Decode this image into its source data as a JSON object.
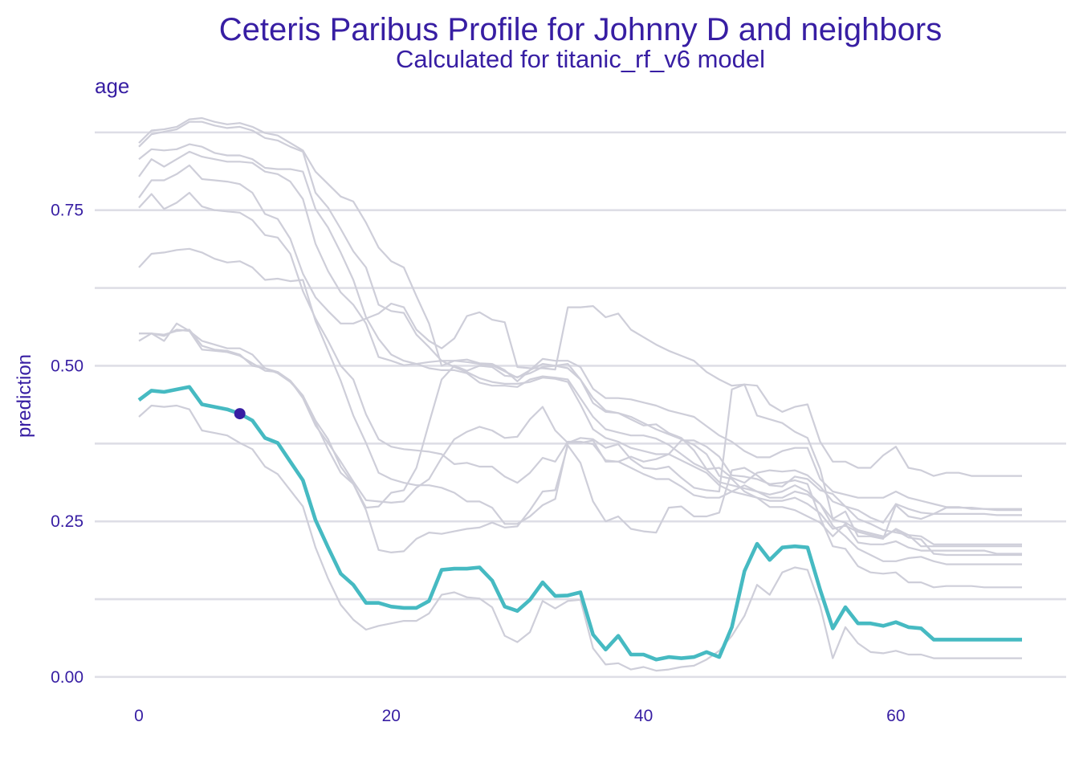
{
  "chart_data": {
    "type": "line",
    "title": "Ceteris Paribus Profile for Johnny D and neighbors",
    "subtitle": "Calculated for titanic_rf_v6 model",
    "facet_label": "age",
    "xlabel": "",
    "ylabel": "prediction",
    "xlim": [
      -3.5,
      73.5
    ],
    "ylim": [
      -0.035,
      0.92
    ],
    "x_ticks": [
      0,
      20,
      40,
      60
    ],
    "x_tick_labels": [
      "0",
      "20",
      "40",
      "60"
    ],
    "y_ticks": [
      0.0,
      0.25,
      0.5,
      0.75
    ],
    "y_tick_labels": [
      "0.00",
      "0.25",
      "0.50",
      "0.75"
    ],
    "grid": true,
    "legend": "none",
    "colors": {
      "main": "#46bac2",
      "neighbors": "#ceced9",
      "point": "#371ea3",
      "text": "#371ea3",
      "grid": "#dedee6"
    },
    "x": [
      0,
      1,
      2,
      3,
      4,
      5,
      6,
      7,
      8,
      9,
      10,
      11,
      12,
      13,
      14,
      15,
      16,
      17,
      18,
      19,
      20,
      21,
      22,
      23,
      24,
      25,
      26,
      27,
      28,
      29,
      30,
      31,
      32,
      33,
      34,
      35,
      36,
      37,
      38,
      39,
      40,
      41,
      42,
      43,
      44,
      45,
      46,
      47,
      48,
      49,
      50,
      51,
      52,
      53,
      54,
      55,
      56,
      57,
      58,
      59,
      60,
      61,
      62,
      63,
      64,
      65,
      66,
      67,
      68,
      69,
      70
    ],
    "main_series": {
      "values": [
        0.445,
        0.46,
        0.458,
        0.462,
        0.466,
        0.438,
        0.434,
        0.43,
        0.423,
        0.412,
        0.384,
        0.376,
        0.346,
        0.316,
        0.252,
        0.208,
        0.166,
        0.148,
        0.119,
        0.119,
        0.113,
        0.111,
        0.111,
        0.122,
        0.172,
        0.174,
        0.174,
        0.176,
        0.155,
        0.113,
        0.106,
        0.124,
        0.152,
        0.13,
        0.131,
        0.136,
        0.068,
        0.044,
        0.066,
        0.036,
        0.036,
        0.028,
        0.032,
        0.03,
        0.032,
        0.04,
        0.032,
        0.08,
        0.17,
        0.214,
        0.188,
        0.208,
        0.21,
        0.208,
        0.14,
        0.078,
        0.112,
        0.086,
        0.086,
        0.082,
        0.088,
        0.08,
        0.078,
        0.06,
        0.06,
        0.06,
        0.06,
        0.06,
        0.06,
        0.06,
        0.06
      ]
    },
    "observation": {
      "x": 8,
      "y": 0.423
    },
    "neighbors": [
      {
        "values": [
          0.858,
          0.878,
          0.88,
          0.884,
          0.896,
          0.898,
          0.892,
          0.888,
          0.89,
          0.884,
          0.874,
          0.87,
          0.858,
          0.846,
          0.812,
          0.792,
          0.772,
          0.764,
          0.73,
          0.69,
          0.668,
          0.658,
          0.612,
          0.568,
          0.5,
          0.508,
          0.51,
          0.504,
          0.503,
          0.493,
          0.475,
          0.493,
          0.503,
          0.5,
          0.503,
          0.478,
          0.448,
          0.428,
          0.424,
          0.418,
          0.408,
          0.398,
          0.39,
          0.382,
          0.373,
          0.358,
          0.323,
          0.318,
          0.298,
          0.288,
          0.273,
          0.273,
          0.268,
          0.258,
          0.248,
          0.226,
          0.246,
          0.216,
          0.213,
          0.213,
          0.218,
          0.208,
          0.203,
          0.203,
          0.203,
          0.203,
          0.203,
          0.203,
          0.198,
          0.198,
          0.198
        ]
      },
      {
        "values": [
          0.852,
          0.872,
          0.876,
          0.88,
          0.892,
          0.892,
          0.886,
          0.882,
          0.884,
          0.878,
          0.866,
          0.862,
          0.852,
          0.844,
          0.778,
          0.754,
          0.72,
          0.684,
          0.658,
          0.598,
          0.588,
          0.585,
          0.55,
          0.53,
          0.508,
          0.498,
          0.49,
          0.48,
          0.474,
          0.471,
          0.471,
          0.474,
          0.481,
          0.479,
          0.474,
          0.438,
          0.398,
          0.384,
          0.378,
          0.368,
          0.363,
          0.358,
          0.358,
          0.348,
          0.338,
          0.328,
          0.308,
          0.298,
          0.293,
          0.288,
          0.283,
          0.283,
          0.288,
          0.278,
          0.263,
          0.238,
          0.243,
          0.233,
          0.228,
          0.223,
          0.238,
          0.228,
          0.226,
          0.213,
          0.213,
          0.213,
          0.213,
          0.213,
          0.213,
          0.213,
          0.213
        ]
      },
      {
        "values": [
          0.832,
          0.848,
          0.846,
          0.848,
          0.856,
          0.852,
          0.842,
          0.838,
          0.838,
          0.832,
          0.818,
          0.816,
          0.816,
          0.812,
          0.752,
          0.722,
          0.682,
          0.638,
          0.578,
          0.543,
          0.518,
          0.508,
          0.503,
          0.496,
          0.493,
          0.493,
          0.488,
          0.473,
          0.468,
          0.468,
          0.466,
          0.478,
          0.483,
          0.481,
          0.478,
          0.448,
          0.418,
          0.398,
          0.393,
          0.388,
          0.388,
          0.383,
          0.373,
          0.358,
          0.343,
          0.333,
          0.313,
          0.308,
          0.303,
          0.298,
          0.293,
          0.298,
          0.308,
          0.298,
          0.278,
          0.253,
          0.248,
          0.236,
          0.231,
          0.226,
          0.236,
          0.224,
          0.221,
          0.198,
          0.196,
          0.196,
          0.196,
          0.196,
          0.196,
          0.196,
          0.196
        ]
      },
      {
        "values": [
          0.804,
          0.832,
          0.82,
          0.832,
          0.844,
          0.836,
          0.832,
          0.828,
          0.828,
          0.826,
          0.812,
          0.808,
          0.796,
          0.768,
          0.696,
          0.652,
          0.618,
          0.598,
          0.568,
          0.514,
          0.508,
          0.501,
          0.503,
          0.506,
          0.508,
          0.508,
          0.506,
          0.503,
          0.501,
          0.491,
          0.481,
          0.493,
          0.511,
          0.508,
          0.508,
          0.498,
          0.463,
          0.448,
          0.448,
          0.446,
          0.441,
          0.436,
          0.428,
          0.423,
          0.418,
          0.403,
          0.388,
          0.378,
          0.363,
          0.353,
          0.353,
          0.363,
          0.368,
          0.368,
          0.318,
          0.298,
          0.293,
          0.288,
          0.288,
          0.288,
          0.298,
          0.288,
          0.283,
          0.278,
          0.273,
          0.273,
          0.27,
          0.27,
          0.27,
          0.27,
          0.27
        ]
      },
      {
        "values": [
          0.77,
          0.798,
          0.798,
          0.808,
          0.822,
          0.8,
          0.798,
          0.796,
          0.792,
          0.778,
          0.744,
          0.736,
          0.704,
          0.648,
          0.61,
          0.588,
          0.568,
          0.568,
          0.576,
          0.584,
          0.6,
          0.594,
          0.558,
          0.54,
          0.528,
          0.544,
          0.58,
          0.586,
          0.574,
          0.57,
          0.498,
          0.496,
          0.496,
          0.494,
          0.594,
          0.594,
          0.596,
          0.578,
          0.584,
          0.558,
          0.546,
          0.534,
          0.524,
          0.516,
          0.508,
          0.49,
          0.478,
          0.468,
          0.47,
          0.468,
          0.438,
          0.426,
          0.434,
          0.438,
          0.378,
          0.346,
          0.346,
          0.336,
          0.336,
          0.356,
          0.37,
          0.336,
          0.332,
          0.323,
          0.328,
          0.328,
          0.323,
          0.323,
          0.323,
          0.323,
          0.323
        ]
      },
      {
        "values": [
          0.754,
          0.776,
          0.752,
          0.762,
          0.778,
          0.756,
          0.75,
          0.748,
          0.746,
          0.734,
          0.71,
          0.706,
          0.68,
          0.62,
          0.576,
          0.54,
          0.5,
          0.478,
          0.422,
          0.382,
          0.37,
          0.366,
          0.364,
          0.362,
          0.358,
          0.342,
          0.344,
          0.338,
          0.338,
          0.322,
          0.312,
          0.328,
          0.352,
          0.346,
          0.378,
          0.378,
          0.374,
          0.348,
          0.346,
          0.336,
          0.326,
          0.318,
          0.318,
          0.306,
          0.292,
          0.288,
          0.288,
          0.298,
          0.308,
          0.298,
          0.288,
          0.288,
          0.298,
          0.293,
          0.278,
          0.243,
          0.226,
          0.206,
          0.196,
          0.186,
          0.186,
          0.191,
          0.193,
          0.186,
          0.181,
          0.181,
          0.181,
          0.181,
          0.181,
          0.181,
          0.181
        ]
      },
      {
        "values": [
          0.658,
          0.68,
          0.682,
          0.686,
          0.688,
          0.682,
          0.672,
          0.666,
          0.668,
          0.658,
          0.638,
          0.64,
          0.636,
          0.638,
          0.572,
          0.524,
          0.476,
          0.42,
          0.376,
          0.328,
          0.318,
          0.312,
          0.308,
          0.308,
          0.304,
          0.296,
          0.282,
          0.282,
          0.272,
          0.246,
          0.246,
          0.258,
          0.276,
          0.286,
          0.376,
          0.376,
          0.38,
          0.346,
          0.346,
          0.354,
          0.346,
          0.35,
          0.358,
          0.38,
          0.38,
          0.37,
          0.354,
          0.324,
          0.322,
          0.318,
          0.31,
          0.312,
          0.316,
          0.31,
          0.256,
          0.21,
          0.206,
          0.178,
          0.168,
          0.166,
          0.168,
          0.152,
          0.152,
          0.144,
          0.146,
          0.146,
          0.146,
          0.144,
          0.144,
          0.144,
          0.144
        ]
      },
      {
        "values": [
          0.552,
          0.552,
          0.548,
          0.558,
          0.556,
          0.54,
          0.534,
          0.528,
          0.528,
          0.518,
          0.496,
          0.488,
          0.474,
          0.452,
          0.412,
          0.382,
          0.338,
          0.31,
          0.272,
          0.274,
          0.296,
          0.3,
          0.336,
          0.408,
          0.478,
          0.5,
          0.492,
          0.5,
          0.498,
          0.484,
          0.482,
          0.488,
          0.498,
          0.5,
          0.496,
          0.478,
          0.44,
          0.426,
          0.424,
          0.414,
          0.404,
          0.406,
          0.392,
          0.384,
          0.364,
          0.334,
          0.336,
          0.32,
          0.312,
          0.328,
          0.332,
          0.33,
          0.332,
          0.324,
          0.306,
          0.282,
          0.274,
          0.268,
          0.256,
          0.248,
          0.278,
          0.27,
          0.264,
          0.262,
          0.272,
          0.272,
          0.272,
          0.27,
          0.268,
          0.268,
          0.268
        ]
      },
      {
        "values": [
          0.54,
          0.552,
          0.54,
          0.568,
          0.556,
          0.526,
          0.524,
          0.522,
          0.516,
          0.504,
          0.492,
          0.49,
          0.476,
          0.452,
          0.408,
          0.366,
          0.328,
          0.31,
          0.268,
          0.204,
          0.2,
          0.202,
          0.222,
          0.232,
          0.23,
          0.234,
          0.238,
          0.24,
          0.248,
          0.24,
          0.242,
          0.268,
          0.298,
          0.3,
          0.372,
          0.344,
          0.282,
          0.25,
          0.258,
          0.238,
          0.234,
          0.232,
          0.272,
          0.274,
          0.258,
          0.258,
          0.264,
          0.332,
          0.336,
          0.324,
          0.308,
          0.306,
          0.322,
          0.318,
          0.3,
          0.294,
          0.274,
          0.254,
          0.246,
          0.236,
          0.232,
          0.228,
          0.21,
          0.21,
          0.21,
          0.21,
          0.21,
          0.21,
          0.21,
          0.21,
          0.21
        ]
      },
      {
        "values": [
          0.418,
          0.436,
          0.434,
          0.436,
          0.43,
          0.396,
          0.392,
          0.388,
          0.376,
          0.366,
          0.338,
          0.326,
          0.3,
          0.274,
          0.208,
          0.158,
          0.116,
          0.092,
          0.076,
          0.082,
          0.086,
          0.09,
          0.09,
          0.102,
          0.132,
          0.136,
          0.128,
          0.126,
          0.112,
          0.066,
          0.056,
          0.072,
          0.122,
          0.11,
          0.122,
          0.124,
          0.046,
          0.02,
          0.022,
          0.012,
          0.016,
          0.01,
          0.012,
          0.016,
          0.018,
          0.028,
          0.042,
          0.066,
          0.098,
          0.148,
          0.132,
          0.168,
          0.176,
          0.172,
          0.114,
          0.03,
          0.08,
          0.054,
          0.04,
          0.038,
          0.042,
          0.036,
          0.036,
          0.03,
          0.03,
          0.03,
          0.03,
          0.03,
          0.03,
          0.03,
          0.03
        ]
      },
      {
        "values": [
          0.552,
          0.552,
          0.55,
          0.556,
          0.558,
          0.532,
          0.526,
          0.524,
          0.518,
          0.5,
          0.496,
          0.49,
          0.476,
          0.448,
          0.404,
          0.376,
          0.346,
          0.314,
          0.284,
          0.282,
          0.28,
          0.282,
          0.304,
          0.318,
          0.352,
          0.382,
          0.394,
          0.402,
          0.396,
          0.384,
          0.386,
          0.414,
          0.434,
          0.396,
          0.376,
          0.384,
          0.382,
          0.368,
          0.374,
          0.35,
          0.336,
          0.334,
          0.338,
          0.32,
          0.304,
          0.3,
          0.298,
          0.462,
          0.47,
          0.42,
          0.414,
          0.408,
          0.394,
          0.384,
          0.334,
          0.254,
          0.266,
          0.226,
          0.226,
          0.222,
          0.276,
          0.258,
          0.254,
          0.262,
          0.262,
          0.262,
          0.262,
          0.262,
          0.26,
          0.26,
          0.26
        ]
      }
    ]
  }
}
